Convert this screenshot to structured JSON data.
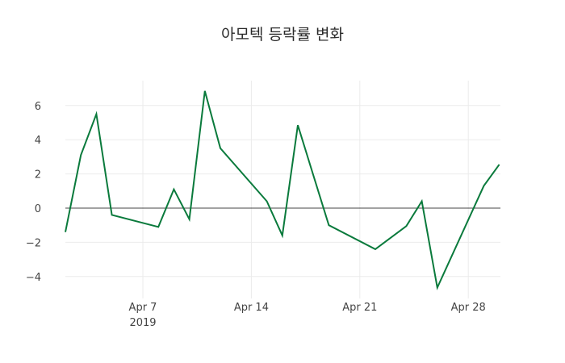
{
  "chart_data": {
    "type": "line",
    "title": "아모텍 등락률 변화",
    "xlabel": "",
    "ylabel": "",
    "x": [
      "2019-04-02",
      "2019-04-03",
      "2019-04-04",
      "2019-04-05",
      "2019-04-08",
      "2019-04-09",
      "2019-04-10",
      "2019-04-11",
      "2019-04-12",
      "2019-04-15",
      "2019-04-16",
      "2019-04-17",
      "2019-04-19",
      "2019-04-22",
      "2019-04-24",
      "2019-04-25",
      "2019-04-26",
      "2019-04-29",
      "2019-04-30"
    ],
    "series": [
      {
        "name": "등락률",
        "color": "#0a7a3c",
        "values": [
          -1.4,
          3.1,
          5.5,
          -0.4,
          -1.1,
          1.1,
          -0.65,
          6.85,
          3.5,
          0.4,
          -1.6,
          4.85,
          -1.0,
          -2.4,
          -1.05,
          0.4,
          -4.65,
          1.3,
          2.55
        ]
      }
    ],
    "x_ticks": [
      "Apr 7\n2019",
      "Apr 14",
      "Apr 21",
      "Apr 28"
    ],
    "y_ticks": [
      -4,
      -2,
      0,
      2,
      4,
      6
    ],
    "ylim": [
      -5.2,
      7.5
    ],
    "grid": true,
    "legend": "none"
  }
}
